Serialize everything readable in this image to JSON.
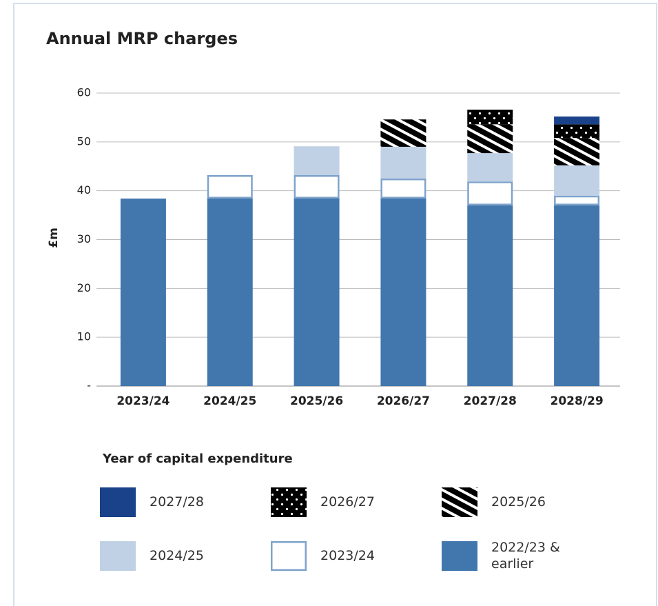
{
  "chart_data": {
    "type": "stacked-bar",
    "title": "Annual MRP charges",
    "y_label": "£m",
    "categories": [
      "2023/24",
      "2024/25",
      "2025/26",
      "2026/27",
      "2027/28",
      "2028/29"
    ],
    "ylim": [
      0,
      60
    ],
    "yticks": [
      {
        "value": 0,
        "label": "-"
      },
      10,
      20,
      30,
      40,
      50,
      60
    ],
    "grid": true,
    "legend_title": "Year of capital expenditure",
    "series": [
      {
        "name": "2022/23 & earlier",
        "color": "#4277ae",
        "pattern": "solid",
        "values": [
          38.4,
          38.4,
          38.4,
          38.4,
          37.0,
          37.0
        ]
      },
      {
        "name": "2023/24",
        "color": "#7fa3cb",
        "pattern": "outline",
        "values": [
          null,
          4.8,
          4.8,
          4.1,
          4.9,
          2.0
        ]
      },
      {
        "name": "2024/25",
        "color": "#c0d1e5",
        "pattern": "solid",
        "values": [
          null,
          null,
          5.9,
          6.5,
          5.8,
          6.2
        ]
      },
      {
        "name": "2025/26",
        "color": "#4277ae",
        "pattern": "hatch",
        "values": [
          null,
          null,
          null,
          5.6,
          5.9,
          5.6
        ]
      },
      {
        "name": "2026/27",
        "color": "#7fa3cb",
        "pattern": "dots",
        "values": [
          null,
          null,
          null,
          null,
          3.0,
          2.8
        ]
      },
      {
        "name": "2027/28",
        "color": "#1a428a",
        "pattern": "solid",
        "values": [
          null,
          null,
          null,
          null,
          null,
          1.6
        ]
      }
    ]
  }
}
